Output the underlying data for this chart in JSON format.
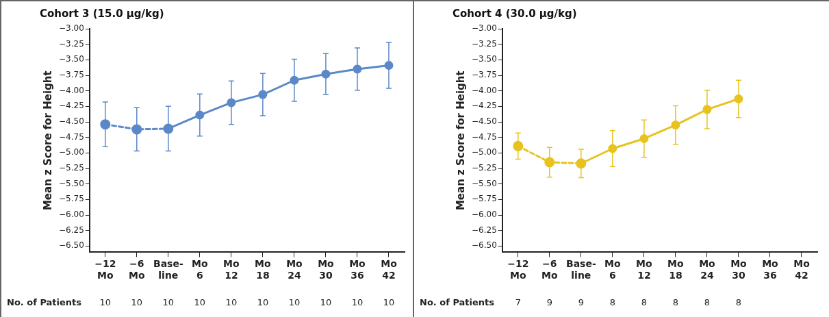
{
  "chart_data": [
    {
      "type": "line",
      "title": "Cohort 3 (15.0 μg/kg)",
      "ylabel": "Mean z Score for Height",
      "categories": [
        "−12\nMo",
        "−6\nMo",
        "Base-\nline",
        "Mo\n6",
        "Mo\n12",
        "Mo\n18",
        "Mo\n24",
        "Mo\n30",
        "Mo\n36",
        "Mo\n42"
      ],
      "series": [
        {
          "color": "#5b88c8",
          "line_style": "dashed",
          "values": [
            -4.54,
            -4.62,
            -4.61,
            null,
            null,
            null,
            null,
            null,
            null,
            null
          ],
          "errors": [
            0.36,
            0.35,
            null,
            null,
            null,
            null,
            null,
            null,
            null,
            null
          ]
        },
        {
          "color": "#5b88c8",
          "line_style": "solid",
          "values": [
            null,
            null,
            -4.61,
            -4.39,
            -4.19,
            -4.06,
            -3.83,
            -3.73,
            -3.65,
            -3.59
          ],
          "errors": [
            null,
            null,
            0.36,
            0.34,
            0.35,
            0.34,
            0.34,
            0.33,
            0.34,
            0.37
          ]
        }
      ],
      "ylim": [
        -6.6,
        -3
      ],
      "yticks": [
        {
          "value": -3,
          "label": "−3.00"
        },
        {
          "value": -3.25,
          "label": "−3.25"
        },
        {
          "value": -3.5,
          "label": "−3.50"
        },
        {
          "value": -3.75,
          "label": "−3.75"
        },
        {
          "value": -4,
          "label": "−4.00"
        },
        {
          "value": -4.25,
          "label": "−4.25"
        },
        {
          "value": -4.5,
          "label": "−4.50"
        },
        {
          "value": -4.75,
          "label": "−4.75"
        },
        {
          "value": -5,
          "label": "−5.00"
        },
        {
          "value": -5.25,
          "label": "−5.25"
        },
        {
          "value": -5.5,
          "label": "−5.50"
        },
        {
          "value": -5.75,
          "label": "−5.75"
        },
        {
          "value": -6,
          "label": "−6.00"
        },
        {
          "value": -6.25,
          "label": "−6.25"
        },
        {
          "value": -6.5,
          "label": "−6.50"
        }
      ],
      "marker": "circle",
      "grid": false,
      "legend": false,
      "annotations": [
        "No. of Patients",
        "10",
        "10",
        "10",
        "10",
        "10",
        "10",
        "10",
        "10",
        "10",
        "10"
      ]
    },
    {
      "type": "line",
      "title": "Cohort 4 (30.0 μg/kg)",
      "ylabel": "Mean z Score for Height",
      "categories": [
        "−12\nMo",
        "−6\nMo",
        "Base-\nline",
        "Mo\n6",
        "Mo\n12",
        "Mo\n18",
        "Mo\n24",
        "Mo\n30",
        "Mo\n36",
        "Mo\n42"
      ],
      "series": [
        {
          "color": "#e8c31e",
          "line_style": "dashed",
          "values": [
            -4.89,
            -5.15,
            -5.17,
            null,
            null,
            null,
            null,
            null,
            null,
            null
          ],
          "errors": [
            0.21,
            0.24,
            null,
            null,
            null,
            null,
            null,
            null,
            null,
            null
          ]
        },
        {
          "color": "#e8c31e",
          "line_style": "solid",
          "values": [
            null,
            null,
            -5.17,
            -4.93,
            -4.77,
            -4.55,
            -4.3,
            -4.13,
            null,
            null
          ],
          "errors": [
            null,
            null,
            0.23,
            0.29,
            0.3,
            0.31,
            0.31,
            0.3,
            null,
            null
          ]
        }
      ],
      "ylim": [
        -6.6,
        -3
      ],
      "yticks": [
        {
          "value": -3,
          "label": "−3.00"
        },
        {
          "value": -3.25,
          "label": "−3.25"
        },
        {
          "value": -3.5,
          "label": "−3.50"
        },
        {
          "value": -3.75,
          "label": "−3.75"
        },
        {
          "value": -4,
          "label": "−4.00"
        },
        {
          "value": -4.25,
          "label": "−4.25"
        },
        {
          "value": -4.5,
          "label": "−4.50"
        },
        {
          "value": -4.75,
          "label": "−4.75"
        },
        {
          "value": -5,
          "label": "−5.00"
        },
        {
          "value": -5.25,
          "label": "−5.25"
        },
        {
          "value": -5.5,
          "label": "−5.50"
        },
        {
          "value": -5.75,
          "label": "−5.75"
        },
        {
          "value": -6,
          "label": "−6.00"
        },
        {
          "value": -6.25,
          "label": "−6.25"
        },
        {
          "value": -6.5,
          "label": "−6.50"
        }
      ],
      "marker": "circle",
      "grid": false,
      "legend": false,
      "annotations": [
        "No. of Patients",
        "7",
        "9",
        "9",
        "8",
        "8",
        "8",
        "8",
        "8"
      ]
    }
  ]
}
